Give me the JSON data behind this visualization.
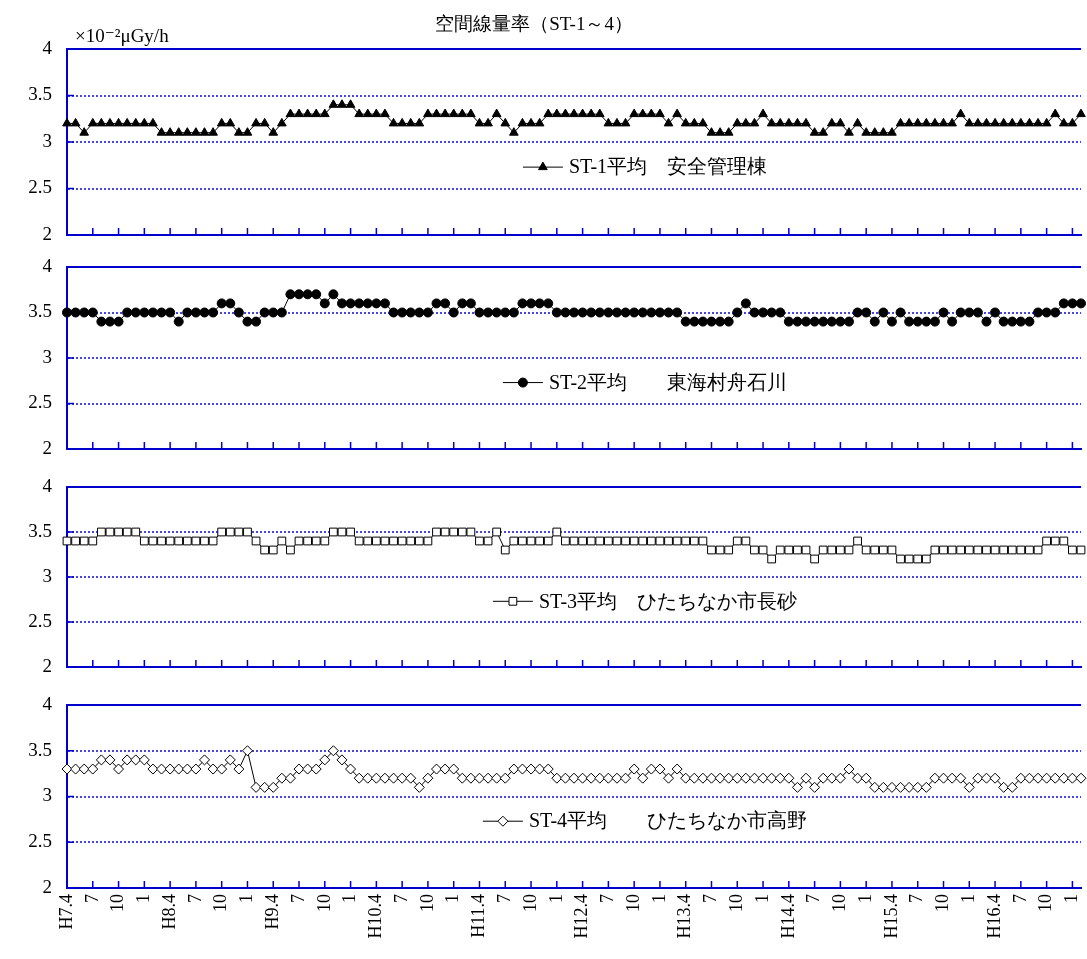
{
  "chart_data": [
    {
      "type": "line",
      "title": "空間線量率（ST-1～4）",
      "ylabel": "×10⁻²μGy/h",
      "categories": [
        null,
        null,
        null,
        null,
        null,
        null,
        null,
        null,
        null,
        null,
        null,
        null,
        null,
        null,
        null,
        null,
        null,
        null,
        null,
        null,
        null,
        null,
        null,
        null,
        null,
        null,
        null,
        null,
        null,
        null,
        null,
        null,
        null,
        null,
        null,
        null,
        null,
        null,
        null,
        null,
        null,
        null,
        null,
        null,
        null,
        null,
        null,
        null,
        null,
        null,
        null,
        null,
        null,
        null,
        null,
        null,
        null,
        null,
        null,
        null,
        null,
        null,
        null,
        null,
        null,
        null,
        null,
        null,
        null,
        null,
        null,
        null,
        null,
        null,
        null,
        null,
        null,
        null,
        null,
        null,
        null,
        null,
        null,
        null,
        null,
        null,
        null,
        null,
        null,
        null,
        null,
        null,
        null,
        null,
        null,
        null,
        null,
        null,
        null,
        null,
        null,
        null,
        null,
        null,
        null,
        null,
        null,
        null,
        null,
        null,
        null,
        null,
        null,
        null,
        null,
        null,
        null,
        null,
        null
      ],
      "series": [
        {
          "name": "ST-1平均　安全管理棟",
          "color": "#000000",
          "values": [
            3.2,
            3.2,
            3.1,
            3.2,
            3.2,
            3.2,
            3.2,
            3.2,
            3.2,
            3.2,
            3.2,
            3.1,
            3.1,
            3.1,
            3.1,
            3.1,
            3.1,
            3.1,
            3.2,
            3.2,
            3.1,
            3.1,
            3.2,
            3.2,
            3.1,
            3.2,
            3.3,
            3.3,
            3.3,
            3.3,
            3.3,
            3.4,
            3.4,
            3.4,
            3.3,
            3.3,
            3.3,
            3.3,
            3.2,
            3.2,
            3.2,
            3.2,
            3.3,
            3.3,
            3.3,
            3.3,
            3.3,
            3.3,
            3.2,
            3.2,
            3.3,
            3.2,
            3.1,
            3.2,
            3.2,
            3.2,
            3.3,
            3.3,
            3.3,
            3.3,
            3.3,
            3.3,
            3.3,
            3.2,
            3.2,
            3.2,
            3.3,
            3.3,
            3.3,
            3.3,
            3.2,
            3.3,
            3.2,
            3.2,
            3.2,
            3.1,
            3.1,
            3.1,
            3.2,
            3.2,
            3.2,
            3.3,
            3.2,
            3.2,
            3.2,
            3.2,
            3.2,
            3.1,
            3.1,
            3.2,
            3.2,
            3.1,
            3.2,
            3.1,
            3.1,
            3.1,
            3.1,
            3.2,
            3.2,
            3.2,
            3.2,
            3.2,
            3.2,
            3.2,
            3.3,
            3.2,
            3.2,
            3.2,
            3.2,
            3.2,
            3.2,
            3.2,
            3.2,
            3.2,
            3.2,
            3.3,
            3.2,
            3.2,
            3.3
          ]
        }
      ],
      "ylim": [
        2,
        4
      ],
      "yticks": [
        2,
        2.5,
        3,
        3.5,
        4
      ],
      "grid": "y",
      "legend": "center",
      "marker": "triangle",
      "tick_labels": "y"
    },
    {
      "type": "line",
      "categories": [
        null,
        null,
        null,
        null,
        null,
        null,
        null,
        null,
        null,
        null,
        null,
        null,
        null,
        null,
        null,
        null,
        null,
        null,
        null,
        null,
        null,
        null,
        null,
        null,
        null,
        null,
        null,
        null,
        null,
        null,
        null,
        null,
        null,
        null,
        null,
        null,
        null,
        null,
        null,
        null,
        null,
        null,
        null,
        null,
        null,
        null,
        null,
        null,
        null,
        null,
        null,
        null,
        null,
        null,
        null,
        null,
        null,
        null,
        null,
        null,
        null,
        null,
        null,
        null,
        null,
        null,
        null,
        null,
        null,
        null,
        null,
        null,
        null,
        null,
        null,
        null,
        null,
        null,
        null,
        null,
        null,
        null,
        null,
        null,
        null,
        null,
        null,
        null,
        null,
        null,
        null,
        null,
        null,
        null,
        null,
        null,
        null,
        null,
        null,
        null,
        null,
        null,
        null,
        null,
        null,
        null,
        null,
        null,
        null,
        null,
        null,
        null,
        null,
        null,
        null,
        null,
        null,
        null,
        null
      ],
      "series": [
        {
          "name": "ST-2平均　　東海村舟石川",
          "color": "#000000",
          "values": [
            3.5,
            3.5,
            3.5,
            3.5,
            3.4,
            3.4,
            3.4,
            3.5,
            3.5,
            3.5,
            3.5,
            3.5,
            3.5,
            3.4,
            3.5,
            3.5,
            3.5,
            3.5,
            3.6,
            3.6,
            3.5,
            3.4,
            3.4,
            3.5,
            3.5,
            3.5,
            3.7,
            3.7,
            3.7,
            3.7,
            3.6,
            3.7,
            3.6,
            3.6,
            3.6,
            3.6,
            3.6,
            3.6,
            3.5,
            3.5,
            3.5,
            3.5,
            3.5,
            3.6,
            3.6,
            3.5,
            3.6,
            3.6,
            3.5,
            3.5,
            3.5,
            3.5,
            3.5,
            3.6,
            3.6,
            3.6,
            3.6,
            3.5,
            3.5,
            3.5,
            3.5,
            3.5,
            3.5,
            3.5,
            3.5,
            3.5,
            3.5,
            3.5,
            3.5,
            3.5,
            3.5,
            3.5,
            3.4,
            3.4,
            3.4,
            3.4,
            3.4,
            3.4,
            3.5,
            3.6,
            3.5,
            3.5,
            3.5,
            3.5,
            3.4,
            3.4,
            3.4,
            3.4,
            3.4,
            3.4,
            3.4,
            3.4,
            3.5,
            3.5,
            3.4,
            3.5,
            3.4,
            3.5,
            3.4,
            3.4,
            3.4,
            3.4,
            3.5,
            3.4,
            3.5,
            3.5,
            3.5,
            3.4,
            3.5,
            3.4,
            3.4,
            3.4,
            3.4,
            3.5,
            3.5,
            3.5,
            3.6,
            3.6,
            3.6
          ]
        }
      ],
      "ylim": [
        2,
        4
      ],
      "yticks": [
        2,
        2.5,
        3,
        3.5,
        4
      ],
      "grid": "y",
      "legend": "center",
      "marker": "circle",
      "tick_labels": "y"
    },
    {
      "type": "line",
      "categories": [
        null,
        null,
        null,
        null,
        null,
        null,
        null,
        null,
        null,
        null,
        null,
        null,
        null,
        null,
        null,
        null,
        null,
        null,
        null,
        null,
        null,
        null,
        null,
        null,
        null,
        null,
        null,
        null,
        null,
        null,
        null,
        null,
        null,
        null,
        null,
        null,
        null,
        null,
        null,
        null,
        null,
        null,
        null,
        null,
        null,
        null,
        null,
        null,
        null,
        null,
        null,
        null,
        null,
        null,
        null,
        null,
        null,
        null,
        null,
        null,
        null,
        null,
        null,
        null,
        null,
        null,
        null,
        null,
        null,
        null,
        null,
        null,
        null,
        null,
        null,
        null,
        null,
        null,
        null,
        null,
        null,
        null,
        null,
        null,
        null,
        null,
        null,
        null,
        null,
        null,
        null,
        null,
        null,
        null,
        null,
        null,
        null,
        null,
        null,
        null,
        null,
        null,
        null,
        null,
        null,
        null,
        null,
        null,
        null,
        null,
        null,
        null,
        null,
        null,
        null,
        null,
        null,
        null,
        null
      ],
      "series": [
        {
          "name": "ST-3平均　ひたちなか市長砂",
          "color": "#000000",
          "values": [
            3.4,
            3.4,
            3.4,
            3.4,
            3.5,
            3.5,
            3.5,
            3.5,
            3.5,
            3.4,
            3.4,
            3.4,
            3.4,
            3.4,
            3.4,
            3.4,
            3.4,
            3.4,
            3.5,
            3.5,
            3.5,
            3.5,
            3.4,
            3.3,
            3.3,
            3.4,
            3.3,
            3.4,
            3.4,
            3.4,
            3.4,
            3.5,
            3.5,
            3.5,
            3.4,
            3.4,
            3.4,
            3.4,
            3.4,
            3.4,
            3.4,
            3.4,
            3.4,
            3.5,
            3.5,
            3.5,
            3.5,
            3.5,
            3.4,
            3.4,
            3.5,
            3.3,
            3.4,
            3.4,
            3.4,
            3.4,
            3.4,
            3.5,
            3.4,
            3.4,
            3.4,
            3.4,
            3.4,
            3.4,
            3.4,
            3.4,
            3.4,
            3.4,
            3.4,
            3.4,
            3.4,
            3.4,
            3.4,
            3.4,
            3.4,
            3.3,
            3.3,
            3.3,
            3.4,
            3.4,
            3.3,
            3.3,
            3.2,
            3.3,
            3.3,
            3.3,
            3.3,
            3.2,
            3.3,
            3.3,
            3.3,
            3.3,
            3.4,
            3.3,
            3.3,
            3.3,
            3.3,
            3.2,
            3.2,
            3.2,
            3.2,
            3.3,
            3.3,
            3.3,
            3.3,
            3.3,
            3.3,
            3.3,
            3.3,
            3.3,
            3.3,
            3.3,
            3.3,
            3.3,
            3.4,
            3.4,
            3.4,
            3.3,
            3.3
          ]
        }
      ],
      "ylim": [
        2,
        4
      ],
      "yticks": [
        2,
        2.5,
        3,
        3.5,
        4
      ],
      "grid": "y",
      "legend": "center",
      "marker": "square",
      "tick_labels": "y"
    },
    {
      "type": "line",
      "categories": [
        "H7.4",
        null,
        null,
        "7",
        null,
        null,
        "10",
        null,
        null,
        "1",
        null,
        null,
        "H8.4",
        null,
        null,
        "7",
        null,
        null,
        "10",
        null,
        null,
        "1",
        null,
        null,
        "H9.4",
        null,
        null,
        "7",
        null,
        null,
        "10",
        null,
        null,
        "1",
        null,
        null,
        "H10.4",
        null,
        null,
        "7",
        null,
        null,
        "10",
        null,
        null,
        "1",
        null,
        null,
        "H11.4",
        null,
        null,
        "7",
        null,
        null,
        "10",
        null,
        null,
        "1",
        null,
        null,
        "H12.4",
        null,
        null,
        "7",
        null,
        null,
        "10",
        null,
        null,
        "1",
        null,
        null,
        "H13.4",
        null,
        null,
        "7",
        null,
        null,
        "10",
        null,
        null,
        "1",
        null,
        null,
        "H14.4",
        null,
        null,
        "7",
        null,
        null,
        "10",
        null,
        null,
        "1",
        null,
        null,
        "H15.4",
        null,
        null,
        "7",
        null,
        null,
        "10",
        null,
        null,
        "1",
        null,
        null,
        "H16.4",
        null,
        null,
        "7",
        null,
        null,
        "10",
        null,
        null,
        "1",
        null
      ],
      "series": [
        {
          "name": "ST-4平均　　ひたちなか市高野",
          "color": "#000000",
          "values": [
            3.3,
            3.3,
            3.3,
            3.3,
            3.4,
            3.4,
            3.3,
            3.4,
            3.4,
            3.4,
            3.3,
            3.3,
            3.3,
            3.3,
            3.3,
            3.3,
            3.4,
            3.3,
            3.3,
            3.4,
            3.3,
            3.5,
            3.1,
            3.1,
            3.1,
            3.2,
            3.2,
            3.3,
            3.3,
            3.3,
            3.4,
            3.5,
            3.4,
            3.3,
            3.2,
            3.2,
            3.2,
            3.2,
            3.2,
            3.2,
            3.2,
            3.1,
            3.2,
            3.3,
            3.3,
            3.3,
            3.2,
            3.2,
            3.2,
            3.2,
            3.2,
            3.2,
            3.3,
            3.3,
            3.3,
            3.3,
            3.3,
            3.2,
            3.2,
            3.2,
            3.2,
            3.2,
            3.2,
            3.2,
            3.2,
            3.2,
            3.3,
            3.2,
            3.3,
            3.3,
            3.2,
            3.3,
            3.2,
            3.2,
            3.2,
            3.2,
            3.2,
            3.2,
            3.2,
            3.2,
            3.2,
            3.2,
            3.2,
            3.2,
            3.2,
            3.1,
            3.2,
            3.1,
            3.2,
            3.2,
            3.2,
            3.3,
            3.2,
            3.2,
            3.1,
            3.1,
            3.1,
            3.1,
            3.1,
            3.1,
            3.1,
            3.2,
            3.2,
            3.2,
            3.2,
            3.1,
            3.2,
            3.2,
            3.2,
            3.1,
            3.1,
            3.2,
            3.2,
            3.2,
            3.2,
            3.2,
            3.2,
            3.2,
            3.2
          ]
        }
      ],
      "ylim": [
        2,
        4
      ],
      "yticks": [
        2,
        2.5,
        3,
        3.5,
        4
      ],
      "grid": "y",
      "legend": "center",
      "marker": "diamond"
    }
  ]
}
